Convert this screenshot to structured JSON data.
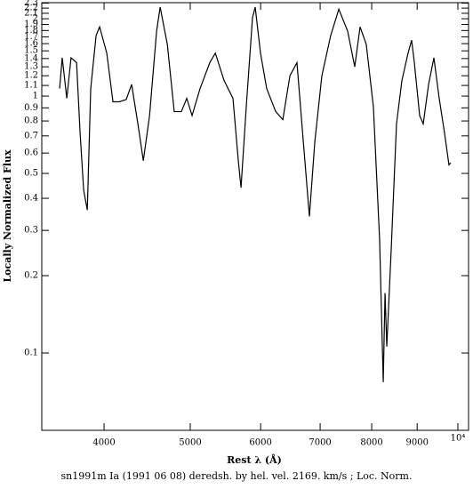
{
  "chart_data": {
    "type": "line",
    "caption": "sn1991m Ia (1991 06 08) deredsh. by hel. vel.  2169. km/s ;  Loc. Norm.",
    "xlabel": "Rest λ (Å)",
    "ylabel": "Locally Normalized Flux",
    "xscale": "log",
    "yscale": "log",
    "color": "#000000",
    "xlim": [
      3404,
      10281
    ],
    "ylim": [
      0.05,
      2.31
    ],
    "xticks": [
      4000,
      5000,
      6000,
      7000,
      8000,
      9000,
      {
        "value": 10000,
        "label": "10⁴"
      }
    ],
    "yticks": [
      0.1,
      0.2,
      0.3,
      0.4,
      0.5,
      0.6,
      0.7,
      0.8,
      0.9,
      1,
      1.1,
      1.2,
      1.3,
      1.4,
      1.5,
      1.6,
      1.7,
      1.8,
      1.9,
      2,
      2.1,
      2.2,
      2.3
    ],
    "x": [
      3565,
      3589,
      3632,
      3672,
      3725,
      3759,
      3794,
      3830,
      3864,
      3918,
      3954,
      4028,
      4093,
      4160,
      4236,
      4296,
      4366,
      4428,
      4500,
      4583,
      4625,
      4712,
      4797,
      4886,
      4955,
      5024,
      5129,
      5260,
      5336,
      5458,
      5585,
      5663,
      5703,
      5781,
      5875,
      5916,
      5998,
      6095,
      6239,
      6355,
      6473,
      6592,
      6715,
      6808,
      6903,
      7031,
      7194,
      7347,
      7517,
      7656,
      7763,
      7888,
      8035,
      8166,
      8243,
      8281,
      8319,
      8415,
      8531,
      8651,
      8790,
      8872,
      8934,
      9058,
      9142,
      9270,
      9398,
      9528,
      9660,
      9772,
      9819
    ],
    "values": [
      1.07,
      1.41,
      0.98,
      1.41,
      1.35,
      0.72,
      0.43,
      0.36,
      1.07,
      1.72,
      1.86,
      1.47,
      0.95,
      0.95,
      0.97,
      1.11,
      0.78,
      0.56,
      0.84,
      1.79,
      2.22,
      1.59,
      0.87,
      0.87,
      0.98,
      0.84,
      1.07,
      1.35,
      1.47,
      1.15,
      0.98,
      0.56,
      0.44,
      0.91,
      2.02,
      2.22,
      1.47,
      1.07,
      0.87,
      0.81,
      1.2,
      1.35,
      0.61,
      0.34,
      0.66,
      1.2,
      1.72,
      2.18,
      1.79,
      1.3,
      1.86,
      1.59,
      0.91,
      0.275,
      0.077,
      0.171,
      0.106,
      0.254,
      0.78,
      1.15,
      1.47,
      1.65,
      1.35,
      0.84,
      0.78,
      1.11,
      1.41,
      0.98,
      0.72,
      0.54,
      0.55
    ]
  }
}
